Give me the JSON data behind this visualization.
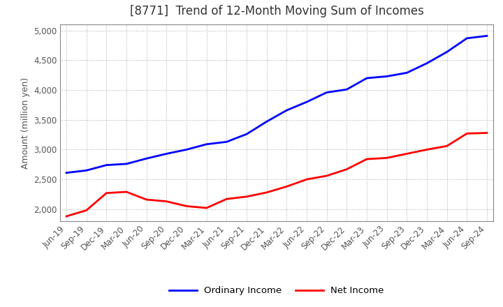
{
  "title": "[8771]  Trend of 12-Month Moving Sum of Incomes",
  "ylabel": "Amount (million yen)",
  "ylim": [
    1800,
    5100
  ],
  "yticks": [
    2000,
    2500,
    3000,
    3500,
    4000,
    4500,
    5000
  ],
  "background_color": "#ffffff",
  "plot_background_color": "#ffffff",
  "grid_color": "#aaaaaa",
  "ordinary_income_color": "#0000ff",
  "net_income_color": "#ff0000",
  "ordinary_income_label": "Ordinary Income",
  "net_income_label": "Net Income",
  "x_labels": [
    "Jun-19",
    "Sep-19",
    "Dec-19",
    "Mar-20",
    "Jun-20",
    "Sep-20",
    "Dec-20",
    "Mar-21",
    "Jun-21",
    "Sep-21",
    "Dec-21",
    "Mar-22",
    "Jun-22",
    "Sep-22",
    "Dec-22",
    "Mar-23",
    "Jun-23",
    "Sep-23",
    "Dec-23",
    "Mar-24",
    "Jun-24",
    "Sep-24"
  ],
  "ordinary_income": [
    2610,
    2650,
    2740,
    2760,
    2850,
    2930,
    3000,
    3090,
    3130,
    3260,
    3470,
    3660,
    3800,
    3960,
    4010,
    4200,
    4230,
    4290,
    4450,
    4640,
    4870,
    4910
  ],
  "net_income": [
    1880,
    1980,
    2270,
    2290,
    2160,
    2130,
    2050,
    2020,
    2170,
    2210,
    2280,
    2380,
    2500,
    2560,
    2670,
    2840,
    2860,
    2930,
    3000,
    3060,
    3270,
    3280
  ]
}
